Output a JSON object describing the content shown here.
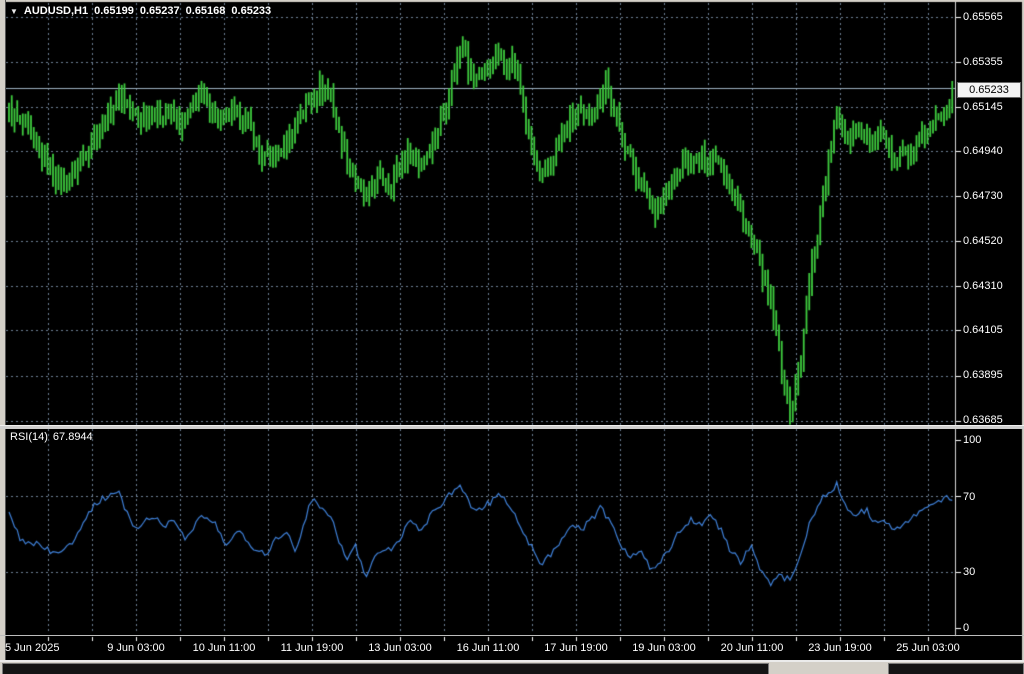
{
  "header": {
    "symbol_period": "AUDUSD,H1",
    "open": "0.65199",
    "high": "0.65237",
    "low": "0.65168",
    "close": "0.65233"
  },
  "colors": {
    "chart_background": "#000000",
    "window_frame": "#d4d0c8",
    "bar_green": "#3ecb3e",
    "grid": "#6e8096",
    "rsi_line": "#3e7fd6",
    "axis_text": "#ffffff",
    "axis_line": "#d8d8d8",
    "current_price_line": "#9db0c0"
  },
  "price_axis": {
    "ticks": [
      "0.65565",
      "0.65355",
      "0.65145",
      "0.64940",
      "0.64730",
      "0.64520",
      "0.64310",
      "0.64105",
      "0.63895",
      "0.63685"
    ],
    "current": "0.65233"
  },
  "time_axis": {
    "labels": [
      "5 Jun 2025",
      "9 Jun 03:00",
      "10 Jun 11:00",
      "11 Jun 19:00",
      "13 Jun 03:00",
      "16 Jun 11:00",
      "17 Jun 19:00",
      "19 Jun 03:00",
      "20 Jun 11:00",
      "23 Jun 19:00",
      "25 Jun 03:00"
    ]
  },
  "rsi": {
    "name": "RSI(14)",
    "value": "67.8944",
    "levels": [
      "100",
      "70",
      "30",
      "0"
    ]
  },
  "chart_data": [
    {
      "type": "candlestick",
      "title": "AUDUSD,H1",
      "symbol": "AUDUSD",
      "timeframe": "H1",
      "ohlc": {
        "open": 0.65199,
        "high": 0.65237,
        "low": 0.65168,
        "close": 0.65233
      },
      "ylim": [
        0.63685,
        0.65565
      ],
      "y_ticks": [
        0.65565,
        0.65355,
        0.65145,
        0.6494,
        0.6473,
        0.6452,
        0.6431,
        0.64105,
        0.63895,
        0.63685
      ],
      "x_labels": [
        "5 Jun 2025",
        "9 Jun 03:00",
        "10 Jun 11:00",
        "11 Jun 19:00",
        "13 Jun 03:00",
        "16 Jun 11:00",
        "17 Jun 19:00",
        "19 Jun 03:00",
        "20 Jun 11:00",
        "23 Jun 19:00",
        "25 Jun 03:00"
      ],
      "bar_count": 343,
      "grid": true,
      "legend_position": "none",
      "price_path_anchors": [
        [
          0.0,
          0.6512
        ],
        [
          0.006,
          0.651
        ],
        [
          0.017,
          0.6505
        ],
        [
          0.033,
          0.6492
        ],
        [
          0.049,
          0.6483
        ],
        [
          0.059,
          0.6479
        ],
        [
          0.07,
          0.6486
        ],
        [
          0.081,
          0.6494
        ],
        [
          0.091,
          0.6502
        ],
        [
          0.102,
          0.6508
        ],
        [
          0.113,
          0.6517
        ],
        [
          0.12,
          0.6521
        ],
        [
          0.128,
          0.6512
        ],
        [
          0.139,
          0.6509
        ],
        [
          0.15,
          0.6513
        ],
        [
          0.16,
          0.651
        ],
        [
          0.171,
          0.6512
        ],
        [
          0.182,
          0.6506
        ],
        [
          0.192,
          0.6512
        ],
        [
          0.203,
          0.6521
        ],
        [
          0.213,
          0.6515
        ],
        [
          0.224,
          0.6508
        ],
        [
          0.235,
          0.6512
        ],
        [
          0.245,
          0.651
        ],
        [
          0.256,
          0.6505
        ],
        [
          0.266,
          0.6492
        ],
        [
          0.277,
          0.649
        ],
        [
          0.288,
          0.6495
        ],
        [
          0.298,
          0.65
        ],
        [
          0.309,
          0.6512
        ],
        [
          0.32,
          0.6518
        ],
        [
          0.33,
          0.6524
        ],
        [
          0.341,
          0.652
        ],
        [
          0.351,
          0.65
        ],
        [
          0.362,
          0.6488
        ],
        [
          0.37,
          0.6478
        ],
        [
          0.378,
          0.647
        ],
        [
          0.385,
          0.6477
        ],
        [
          0.394,
          0.6482
        ],
        [
          0.404,
          0.6478
        ],
        [
          0.415,
          0.6488
        ],
        [
          0.426,
          0.6494
        ],
        [
          0.436,
          0.6487
        ],
        [
          0.447,
          0.6496
        ],
        [
          0.458,
          0.6508
        ],
        [
          0.468,
          0.6524
        ],
        [
          0.477,
          0.654
        ],
        [
          0.482,
          0.6549
        ],
        [
          0.487,
          0.6533
        ],
        [
          0.495,
          0.6527
        ],
        [
          0.502,
          0.6531
        ],
        [
          0.511,
          0.6535
        ],
        [
          0.519,
          0.6539
        ],
        [
          0.527,
          0.6533
        ],
        [
          0.534,
          0.6537
        ],
        [
          0.54,
          0.6527
        ],
        [
          0.548,
          0.6508
        ],
        [
          0.555,
          0.6493
        ],
        [
          0.564,
          0.6481
        ],
        [
          0.572,
          0.6487
        ],
        [
          0.58,
          0.6494
        ],
        [
          0.587,
          0.6502
        ],
        [
          0.596,
          0.6509
        ],
        [
          0.604,
          0.6513
        ],
        [
          0.611,
          0.6507
        ],
        [
          0.619,
          0.6514
        ],
        [
          0.627,
          0.6519
        ],
        [
          0.633,
          0.6528
        ],
        [
          0.638,
          0.6514
        ],
        [
          0.646,
          0.6507
        ],
        [
          0.654,
          0.6497
        ],
        [
          0.661,
          0.6487
        ],
        [
          0.67,
          0.6479
        ],
        [
          0.678,
          0.6473
        ],
        [
          0.686,
          0.6466
        ],
        [
          0.693,
          0.6471
        ],
        [
          0.702,
          0.6477
        ],
        [
          0.71,
          0.6484
        ],
        [
          0.718,
          0.649
        ],
        [
          0.725,
          0.6487
        ],
        [
          0.734,
          0.6491
        ],
        [
          0.742,
          0.6488
        ],
        [
          0.749,
          0.6493
        ],
        [
          0.757,
          0.6486
        ],
        [
          0.765,
          0.6477
        ],
        [
          0.774,
          0.6468
        ],
        [
          0.781,
          0.6458
        ],
        [
          0.789,
          0.645
        ],
        [
          0.795,
          0.6443
        ],
        [
          0.803,
          0.643
        ],
        [
          0.81,
          0.6418
        ],
        [
          0.816,
          0.6402
        ],
        [
          0.821,
          0.6388
        ],
        [
          0.825,
          0.6377
        ],
        [
          0.829,
          0.6372
        ],
        [
          0.834,
          0.6384
        ],
        [
          0.84,
          0.6398
        ],
        [
          0.845,
          0.6418
        ],
        [
          0.85,
          0.6438
        ],
        [
          0.856,
          0.6452
        ],
        [
          0.861,
          0.6468
        ],
        [
          0.866,
          0.6482
        ],
        [
          0.872,
          0.6497
        ],
        [
          0.877,
          0.651
        ],
        [
          0.882,
          0.6506
        ],
        [
          0.891,
          0.65
        ],
        [
          0.898,
          0.6507
        ],
        [
          0.906,
          0.6503
        ],
        [
          0.914,
          0.6496
        ],
        [
          0.923,
          0.6501
        ],
        [
          0.93,
          0.6496
        ],
        [
          0.937,
          0.6492
        ],
        [
          0.946,
          0.6495
        ],
        [
          0.954,
          0.649
        ],
        [
          0.962,
          0.6495
        ],
        [
          0.969,
          0.6501
        ],
        [
          0.978,
          0.6505
        ],
        [
          0.986,
          0.6509
        ],
        [
          0.993,
          0.6515
        ],
        [
          1.0,
          0.65233
        ]
      ]
    },
    {
      "type": "line",
      "name": "RSI",
      "period": 14,
      "label": "RSI(14) 67.8944",
      "current_value": 67.8944,
      "ylim": [
        0,
        100
      ],
      "levels": [
        100,
        70,
        30,
        0
      ],
      "grid": true,
      "anchors": [
        [
          0.0,
          60
        ],
        [
          0.012,
          47
        ],
        [
          0.028,
          45
        ],
        [
          0.049,
          39
        ],
        [
          0.065,
          44
        ],
        [
          0.086,
          63
        ],
        [
          0.097,
          68
        ],
        [
          0.116,
          73
        ],
        [
          0.128,
          57
        ],
        [
          0.139,
          52
        ],
        [
          0.15,
          60
        ],
        [
          0.166,
          55
        ],
        [
          0.176,
          57
        ],
        [
          0.187,
          47
        ],
        [
          0.203,
          60
        ],
        [
          0.219,
          55
        ],
        [
          0.229,
          44
        ],
        [
          0.245,
          52
        ],
        [
          0.256,
          44
        ],
        [
          0.272,
          39
        ],
        [
          0.282,
          47
        ],
        [
          0.293,
          52
        ],
        [
          0.304,
          41
        ],
        [
          0.32,
          68
        ],
        [
          0.33,
          65
        ],
        [
          0.341,
          60
        ],
        [
          0.357,
          36
        ],
        [
          0.367,
          44
        ],
        [
          0.378,
          28
        ],
        [
          0.389,
          39
        ],
        [
          0.399,
          41
        ],
        [
          0.41,
          44
        ],
        [
          0.426,
          57
        ],
        [
          0.436,
          52
        ],
        [
          0.452,
          63
        ],
        [
          0.468,
          71
        ],
        [
          0.479,
          75
        ],
        [
          0.489,
          66
        ],
        [
          0.5,
          63
        ],
        [
          0.511,
          67
        ],
        [
          0.521,
          71
        ],
        [
          0.532,
          64
        ],
        [
          0.542,
          55
        ],
        [
          0.553,
          44
        ],
        [
          0.564,
          34
        ],
        [
          0.574,
          39
        ],
        [
          0.585,
          47
        ],
        [
          0.596,
          55
        ],
        [
          0.606,
          52
        ],
        [
          0.617,
          57
        ],
        [
          0.627,
          64
        ],
        [
          0.638,
          55
        ],
        [
          0.649,
          44
        ],
        [
          0.659,
          38
        ],
        [
          0.67,
          41
        ],
        [
          0.68,
          31
        ],
        [
          0.691,
          36
        ],
        [
          0.702,
          44
        ],
        [
          0.712,
          52
        ],
        [
          0.723,
          58
        ],
        [
          0.734,
          55
        ],
        [
          0.744,
          60
        ],
        [
          0.755,
          52
        ],
        [
          0.765,
          41
        ],
        [
          0.776,
          35
        ],
        [
          0.787,
          44
        ],
        [
          0.797,
          31
        ],
        [
          0.808,
          23
        ],
        [
          0.818,
          28
        ],
        [
          0.829,
          25
        ],
        [
          0.84,
          41
        ],
        [
          0.85,
          57
        ],
        [
          0.861,
          68
        ],
        [
          0.872,
          73
        ],
        [
          0.878,
          77
        ],
        [
          0.887,
          64
        ],
        [
          0.898,
          60
        ],
        [
          0.909,
          63
        ],
        [
          0.919,
          55
        ],
        [
          0.93,
          57
        ],
        [
          0.941,
          52
        ],
        [
          0.951,
          55
        ],
        [
          0.962,
          60
        ],
        [
          0.972,
          63
        ],
        [
          0.983,
          67
        ],
        [
          0.993,
          70
        ],
        [
          1.0,
          67.8944
        ]
      ]
    }
  ]
}
